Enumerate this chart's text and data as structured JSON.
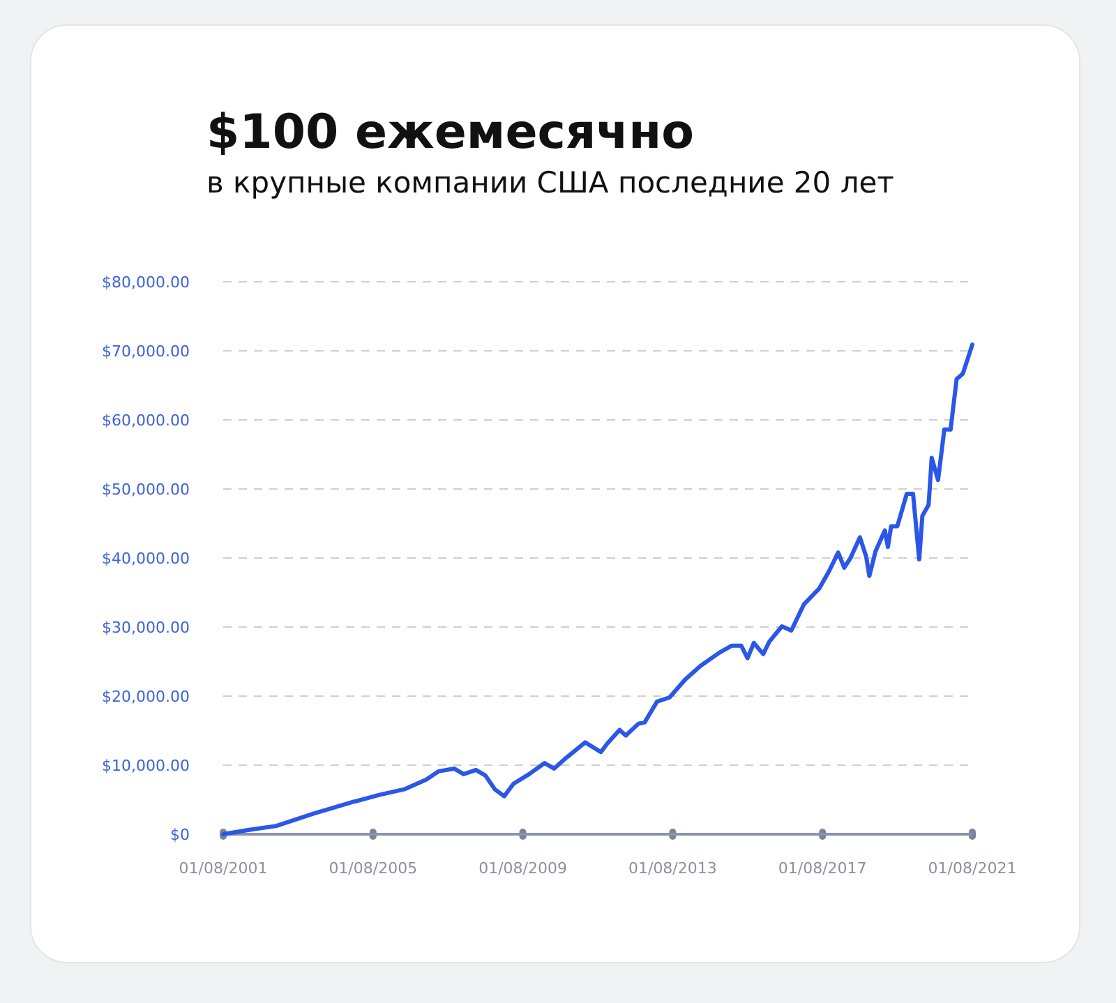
{
  "chart_data": {
    "type": "line",
    "title": "$100 ежемесячно",
    "subtitle": "в крупные компании США последние 20 лет",
    "x": [
      "2001-08",
      "2002-04",
      "2003-01",
      "2004-01",
      "2005-01",
      "2005-10",
      "2006-06",
      "2007-01",
      "2007-05",
      "2007-10",
      "2008-01",
      "2008-05",
      "2008-08",
      "2008-11",
      "2009-02",
      "2009-05",
      "2009-10",
      "2010-03",
      "2010-06",
      "2010-10",
      "2011-04",
      "2011-09",
      "2011-11",
      "2012-03",
      "2012-05",
      "2012-09",
      "2012-11",
      "2013-03",
      "2013-07",
      "2013-12",
      "2014-05",
      "2014-11",
      "2015-03",
      "2015-06",
      "2015-08",
      "2015-10",
      "2016-01",
      "2016-03",
      "2016-07",
      "2016-10",
      "2017-02",
      "2017-07",
      "2017-10",
      "2018-01",
      "2018-03",
      "2018-05",
      "2018-08",
      "2018-10",
      "2018-11",
      "2019-01",
      "2019-04",
      "2019-05",
      "2019-06",
      "2019-08",
      "2019-11",
      "2020-01",
      "2020-03",
      "2020-04",
      "2020-06",
      "2020-07",
      "2020-09",
      "2020-11",
      "2021-01",
      "2021-03",
      "2021-05",
      "2021-08"
    ],
    "series": [
      {
        "color": "#2b57e8",
        "values": [
          0,
          600,
          1200,
          3000,
          4600,
          5700,
          6500,
          7900,
          9100,
          9500,
          8700,
          9300,
          8500,
          6500,
          5500,
          7300,
          8700,
          10300,
          9500,
          11100,
          13300,
          11900,
          13100,
          15100,
          14300,
          16000,
          16200,
          19200,
          19800,
          22400,
          24400,
          26300,
          27300,
          27300,
          25500,
          27700,
          26100,
          27900,
          30100,
          29500,
          33300,
          35600,
          38000,
          40800,
          38600,
          40000,
          43000,
          40200,
          37400,
          41000,
          44000,
          41600,
          44600,
          44600,
          49300,
          49300,
          39800,
          46100,
          47700,
          54500,
          51300,
          58600,
          58600,
          65900,
          66700,
          70900
        ]
      }
    ],
    "xlim": [
      "2001-08-01",
      "2021-08-01"
    ],
    "xticks": [
      {
        "value": "2001-08-01",
        "label": "01/08/2001"
      },
      {
        "value": "2005-08-01",
        "label": "01/08/2005"
      },
      {
        "value": "2009-08-01",
        "label": "01/08/2009"
      },
      {
        "value": "2013-08-01",
        "label": "01/08/2013"
      },
      {
        "value": "2017-08-01",
        "label": "01/08/2017"
      },
      {
        "value": "2021-08-01",
        "label": "01/08/2021"
      }
    ],
    "ylim": [
      0,
      80000
    ],
    "yticks": [
      {
        "value": 0,
        "label": "$0"
      },
      {
        "value": 10000,
        "label": "$10,000.00"
      },
      {
        "value": 20000,
        "label": "$20,000.00"
      },
      {
        "value": 30000,
        "label": "$30,000.00"
      },
      {
        "value": 40000,
        "label": "$40,000.00"
      },
      {
        "value": 50000,
        "label": "$50,000.00"
      },
      {
        "value": 60000,
        "label": "$60,000.00"
      },
      {
        "value": 70000,
        "label": "$70,000.00"
      },
      {
        "value": 80000,
        "label": "$80,000.00"
      }
    ],
    "grid": "y",
    "marker": "none",
    "line_style": "solid"
  }
}
